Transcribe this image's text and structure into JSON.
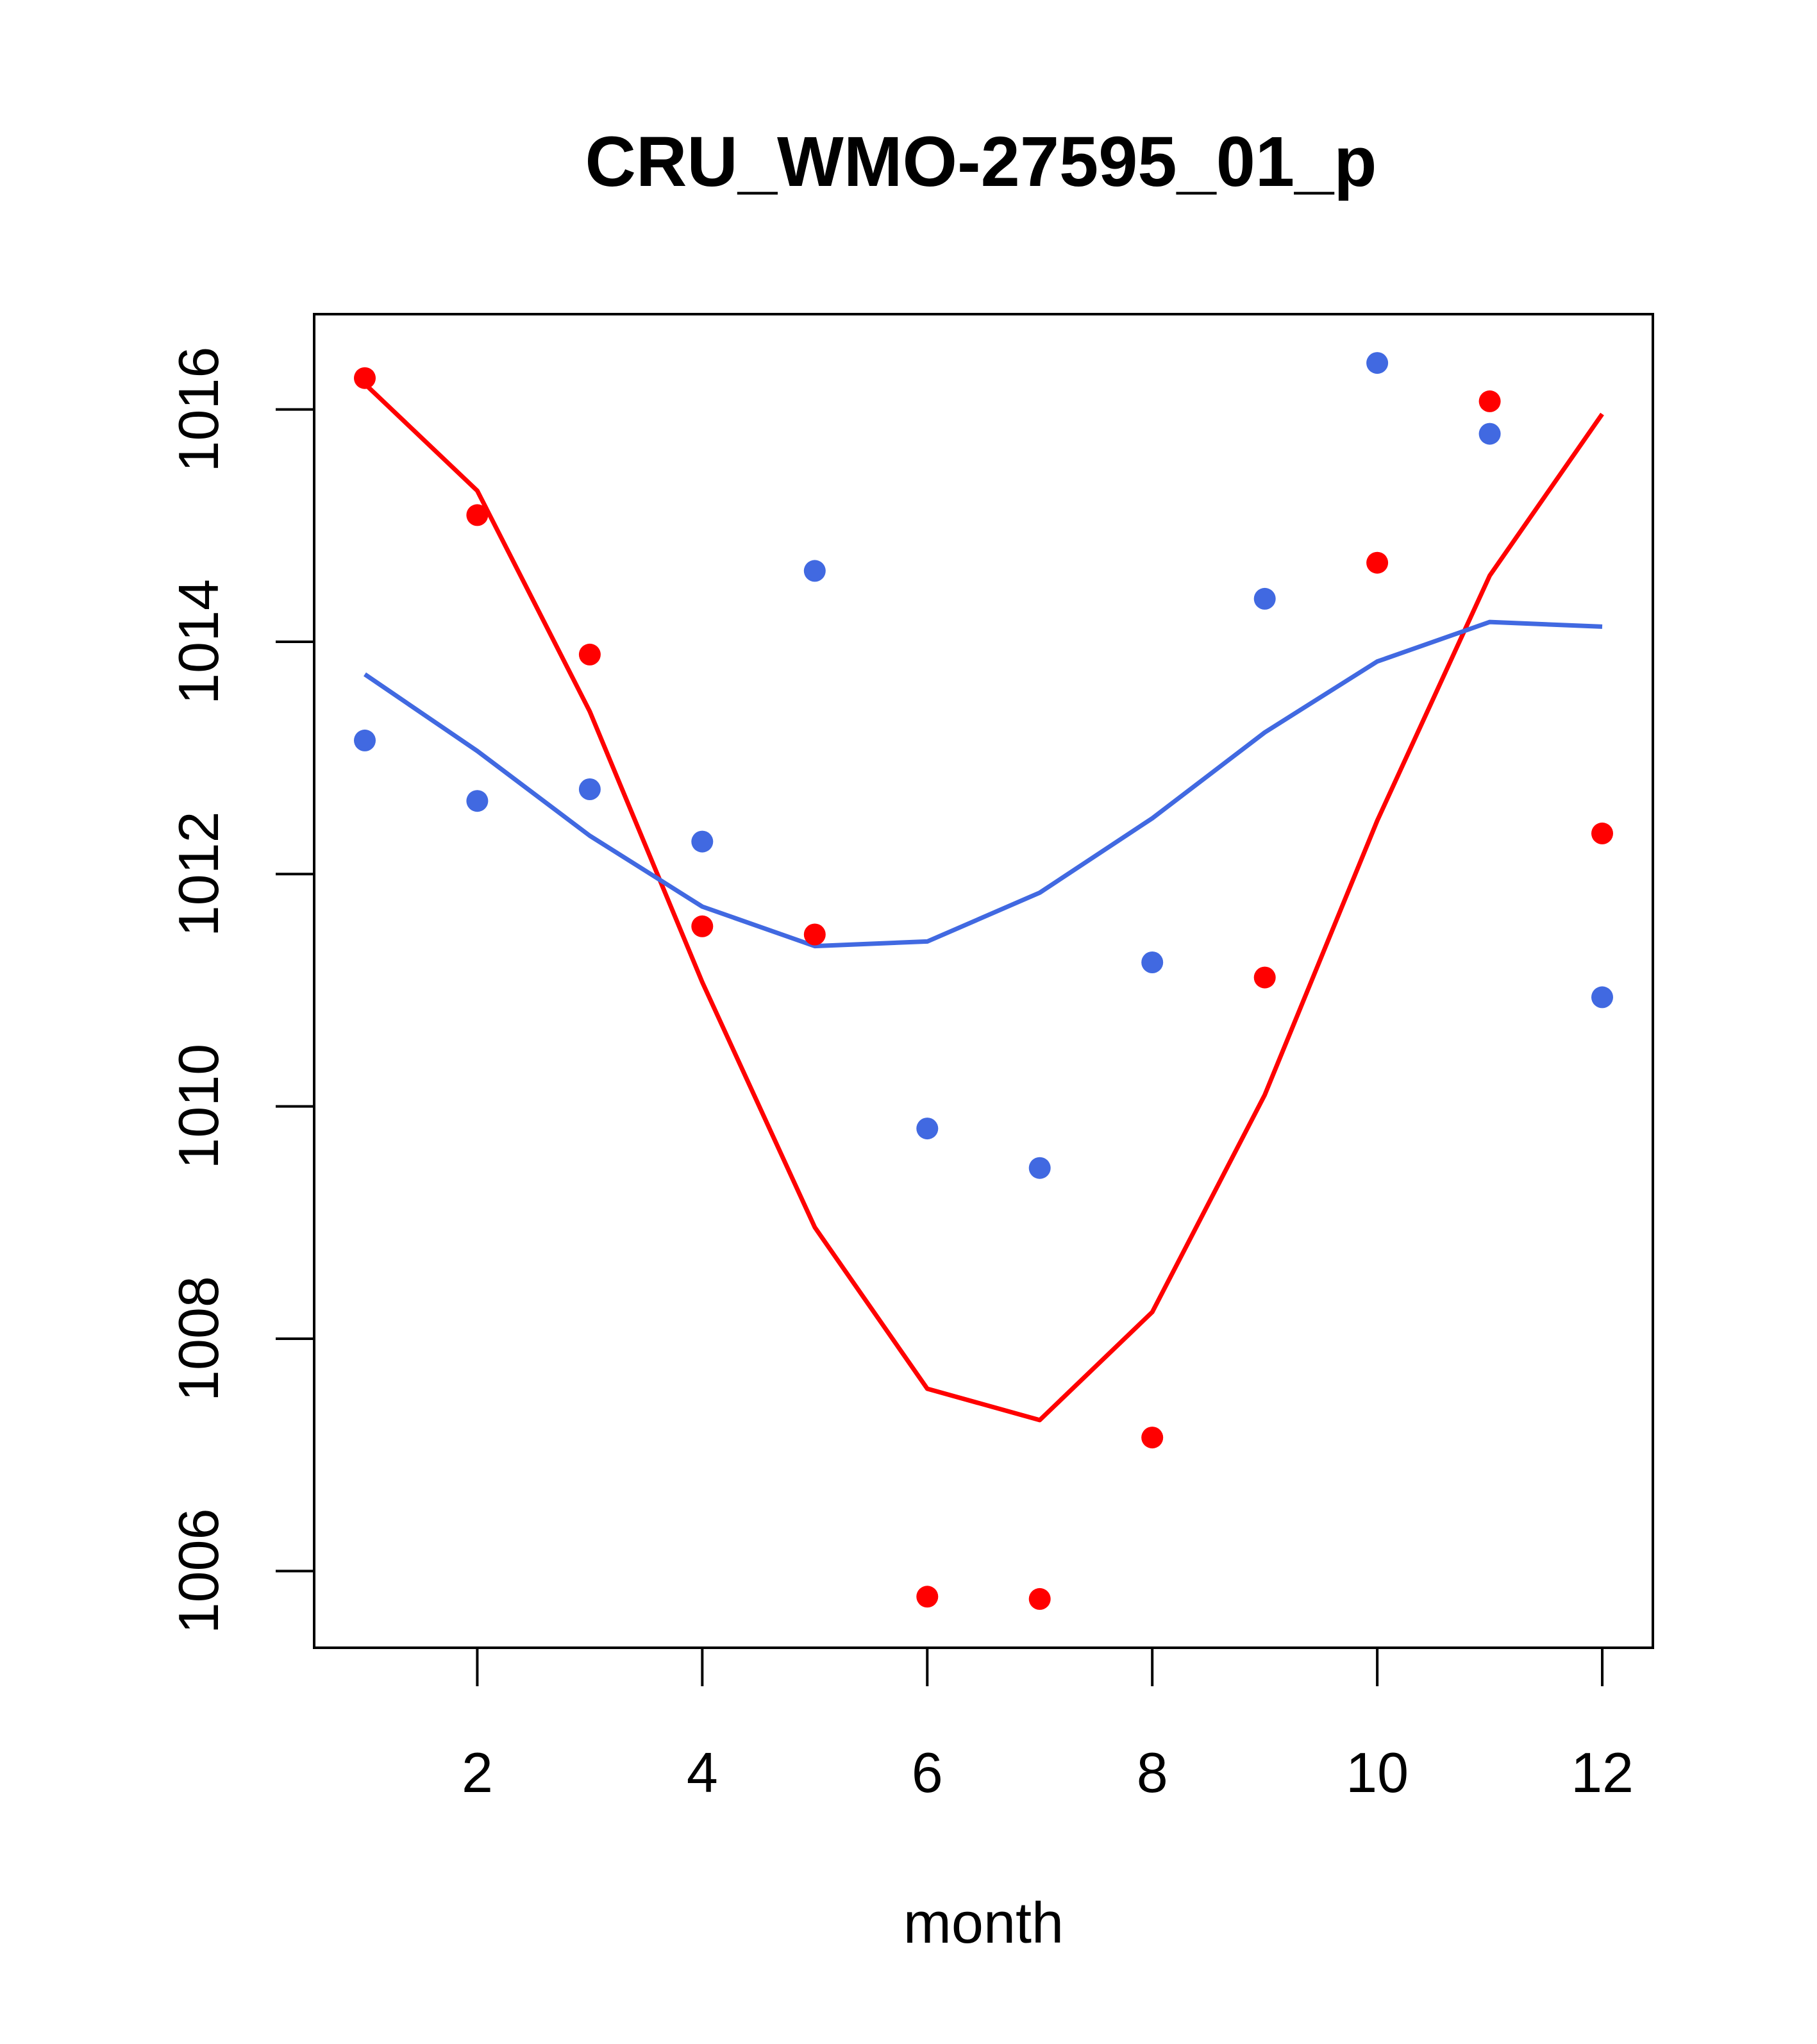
{
  "chart_data": {
    "type": "scatter",
    "title": "CRU_WMO-27595_01_p",
    "xlabel": "month",
    "ylabel": "",
    "xlim": [
      0.55,
      12.45
    ],
    "ylim": [
      1005.34,
      1016.82
    ],
    "x_ticks": [
      2,
      4,
      6,
      8,
      10,
      12
    ],
    "x_tick_labels": [
      "2",
      "4",
      "6",
      "8",
      "10",
      "12"
    ],
    "y_ticks": [
      1006,
      1008,
      1010,
      1012,
      1014,
      1016
    ],
    "y_tick_labels": [
      "1006",
      "1008",
      "1010",
      "1012",
      "1014",
      "1016"
    ],
    "grid": false,
    "x": [
      1,
      2,
      3,
      4,
      5,
      6,
      7,
      8,
      9,
      10,
      11,
      12
    ],
    "series": [
      {
        "color": "#ff0000",
        "points": [
          1016.27,
          1015.09,
          1013.89,
          1011.55,
          1011.48,
          1005.78,
          1005.76,
          1007.15,
          1011.11,
          1014.68,
          1016.07,
          1012.35
        ],
        "line": [
          1016.22,
          1015.3,
          1013.4,
          1011.07,
          1008.96,
          1007.57,
          1007.3,
          1008.23,
          1010.1,
          1012.46,
          1014.57,
          1015.96
        ]
      },
      {
        "color": "#4169e1",
        "points": [
          1013.15,
          1012.63,
          1012.73,
          1012.28,
          1014.61,
          1009.81,
          1009.47,
          1011.24,
          1014.37,
          1016.4,
          1015.79,
          1010.94
        ],
        "line": [
          1013.72,
          1013.06,
          1012.33,
          1011.72,
          1011.38,
          1011.42,
          1011.84,
          1012.48,
          1013.22,
          1013.83,
          1014.17,
          1014.13
        ]
      }
    ]
  }
}
